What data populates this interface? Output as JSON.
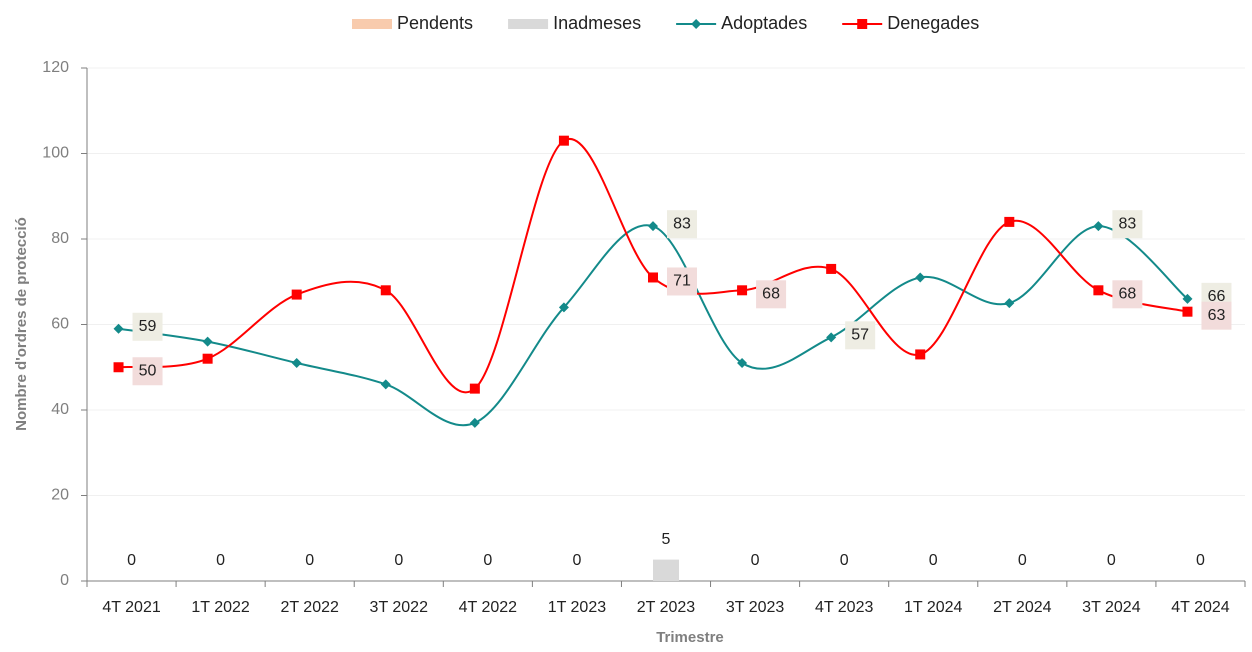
{
  "chart_data": {
    "type": "line",
    "x_label": "Trimestre",
    "y_label": "Nombre d'ordres de protecció",
    "categories": [
      "4T 2021",
      "1T 2022",
      "2T 2022",
      "3T 2022",
      "4T 2022",
      "1T 2023",
      "2T 2023",
      "3T 2023",
      "4T 2023",
      "1T 2024",
      "2T 2024",
      "3T 2024",
      "4T 2024"
    ],
    "series": [
      {
        "name": "Pendents",
        "type": "bar",
        "color": "#f8cbad",
        "values": [
          0,
          0,
          0,
          0,
          0,
          0,
          0,
          0,
          0,
          0,
          0,
          0,
          0
        ]
      },
      {
        "name": "Inadmeses",
        "type": "bar",
        "color": "#d9d9d9",
        "values": [
          0,
          0,
          0,
          0,
          0,
          0,
          5,
          0,
          0,
          0,
          0,
          0,
          0
        ],
        "value_labels": [
          "0",
          "0",
          "0",
          "0",
          "0",
          "0",
          "5",
          "0",
          "0",
          "0",
          "0",
          "0",
          "0"
        ]
      },
      {
        "name": "Adoptades",
        "type": "line",
        "color": "#138a8a",
        "marker": "diamond",
        "label_color": "#eeede3",
        "values": [
          59,
          56,
          51,
          46,
          37,
          64,
          83,
          51,
          57,
          71,
          65,
          83,
          66
        ],
        "value_labels": [
          "59",
          null,
          null,
          null,
          null,
          null,
          "83",
          null,
          "57",
          null,
          null,
          "83",
          "66"
        ]
      },
      {
        "name": "Denegades",
        "type": "line",
        "color": "#ff0000",
        "marker": "square",
        "label_color": "#f2dcdb",
        "values": [
          50,
          52,
          67,
          68,
          45,
          103,
          71,
          68,
          73,
          53,
          84,
          68,
          63
        ],
        "value_labels": [
          "50",
          null,
          null,
          null,
          null,
          null,
          "71",
          "68",
          null,
          null,
          null,
          "68",
          "63"
        ]
      }
    ],
    "ylim": [
      0,
      120
    ],
    "yticks": [
      0,
      20,
      40,
      60,
      80,
      100,
      120
    ],
    "grid": true,
    "legend": "top"
  }
}
